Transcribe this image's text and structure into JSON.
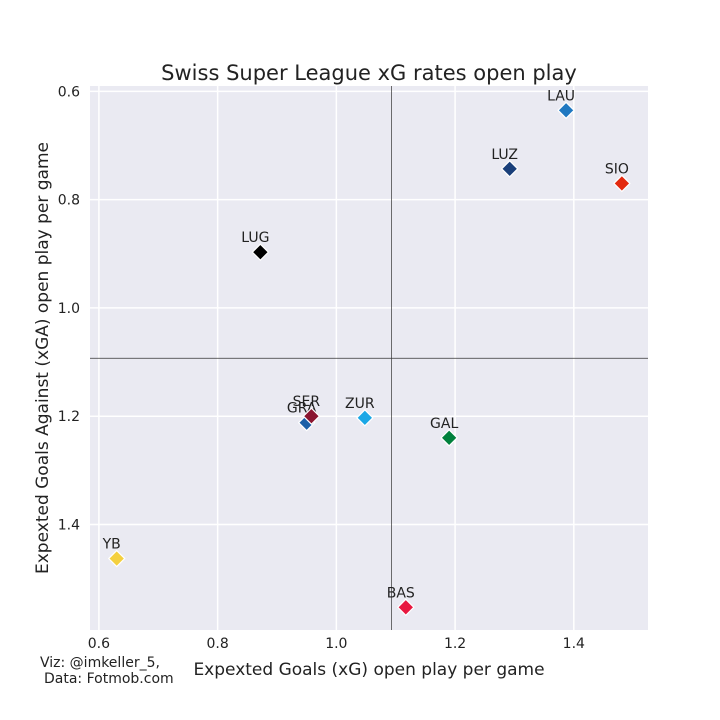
{
  "chart_data": {
    "type": "scatter",
    "title": "Swiss Super League xG rates open play",
    "xlabel": "Expexted Goals (xG) open play per game",
    "ylabel": "Expexted Goals Against (xGA) open play per game",
    "xlim": [
      0.585,
      1.525
    ],
    "ylim": [
      0.59,
      1.595
    ],
    "y_inverted": true,
    "xticks": [
      "0.6",
      "0.8",
      "1.0",
      "1.2",
      "1.4"
    ],
    "yticks": [
      "0.6",
      "0.8",
      "1.0",
      "1.2",
      "1.4"
    ],
    "grid": true,
    "reference_lines": {
      "x": 1.093,
      "y": 1.093
    },
    "points": [
      {
        "label": "LAU",
        "x": 1.387,
        "y": 0.635,
        "color": "#1f78c1"
      },
      {
        "label": "LUZ",
        "x": 1.292,
        "y": 0.743,
        "color": "#1a3f7a"
      },
      {
        "label": "SIO",
        "x": 1.481,
        "y": 0.77,
        "color": "#e3290e"
      },
      {
        "label": "LUG",
        "x": 0.872,
        "y": 0.897,
        "color": "#000000"
      },
      {
        "label": "GRA",
        "x": 0.95,
        "y": 1.212,
        "color": "#1b5fa8"
      },
      {
        "label": "SER",
        "x": 0.958,
        "y": 1.2,
        "color": "#8a1530"
      },
      {
        "label": "ZUR",
        "x": 1.048,
        "y": 1.203,
        "color": "#1aa7e6"
      },
      {
        "label": "GAL",
        "x": 1.19,
        "y": 1.24,
        "color": "#00803c"
      },
      {
        "label": "YB",
        "x": 0.63,
        "y": 1.463,
        "color": "#f4d03f"
      },
      {
        "label": "BAS",
        "x": 1.117,
        "y": 1.553,
        "color": "#e8173f"
      }
    ]
  },
  "credits": {
    "line1": "Viz: @imkeller_5,",
    "line2": "Data: Fotmob.com"
  }
}
